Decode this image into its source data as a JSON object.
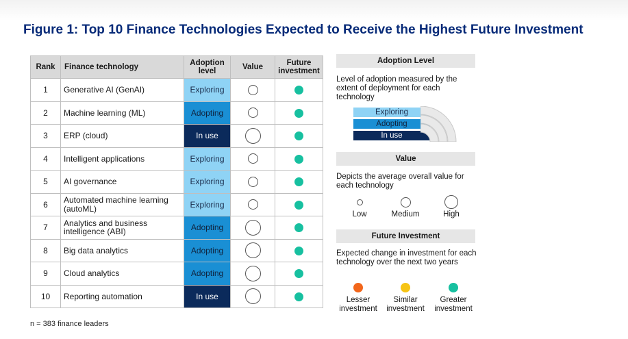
{
  "title": "Figure 1: Top 10 Finance Technologies Expected to Receive the Highest Future Investment",
  "note": "n = 383 finance leaders",
  "colors": {
    "title": "#062a78",
    "exploring": "#8fd3f5",
    "adopting": "#1a8fd4",
    "in_use": "#0b2a5b",
    "lesser": "#f2661b",
    "similar": "#f6c415",
    "greater": "#17c0a0"
  },
  "chart_data": {
    "type": "table",
    "columns": {
      "rank": "Rank",
      "tech": "Finance technology",
      "adoption": "Adoption level",
      "value": "Value",
      "investment": "Future investment"
    },
    "rows": [
      {
        "rank": "1",
        "tech": "Generative AI (GenAI)",
        "adoption": "Exploring",
        "value": "Medium",
        "investment": "Greater"
      },
      {
        "rank": "2",
        "tech": "Machine learning (ML)",
        "adoption": "Adopting",
        "value": "Medium",
        "investment": "Greater"
      },
      {
        "rank": "3",
        "tech": "ERP (cloud)",
        "adoption": "In use",
        "value": "High",
        "investment": "Greater"
      },
      {
        "rank": "4",
        "tech": "Intelligent applications",
        "adoption": "Exploring",
        "value": "Medium",
        "investment": "Greater"
      },
      {
        "rank": "5",
        "tech": "AI governance",
        "adoption": "Exploring",
        "value": "Medium",
        "investment": "Greater"
      },
      {
        "rank": "6",
        "tech": "Automated machine learning (autoML)",
        "adoption": "Exploring",
        "value": "Medium",
        "investment": "Greater"
      },
      {
        "rank": "7",
        "tech": "Analytics and business intelligence (ABI)",
        "adoption": "Adopting",
        "value": "High",
        "investment": "Greater"
      },
      {
        "rank": "8",
        "tech": "Big data analytics",
        "adoption": "Adopting",
        "value": "High",
        "investment": "Greater"
      },
      {
        "rank": "9",
        "tech": "Cloud analytics",
        "adoption": "Adopting",
        "value": "High",
        "investment": "Greater"
      },
      {
        "rank": "10",
        "tech": "Reporting automation",
        "adoption": "In use",
        "value": "High",
        "investment": "Greater"
      }
    ]
  },
  "legend": {
    "adoption": {
      "title": "Adoption Level",
      "desc": "Level of adoption measured by the extent of deployment for each technology",
      "levels": [
        "Exploring",
        "Adopting",
        "In use"
      ]
    },
    "value": {
      "title": "Value",
      "desc": "Depicts the average overall value for each technology",
      "items": [
        "Low",
        "Medium",
        "High"
      ]
    },
    "investment": {
      "title": "Future Investment",
      "desc": "Expected change in investment for each technology over the next two years",
      "items": [
        "Lesser investment",
        "Similar investment",
        "Greater investment"
      ]
    }
  }
}
